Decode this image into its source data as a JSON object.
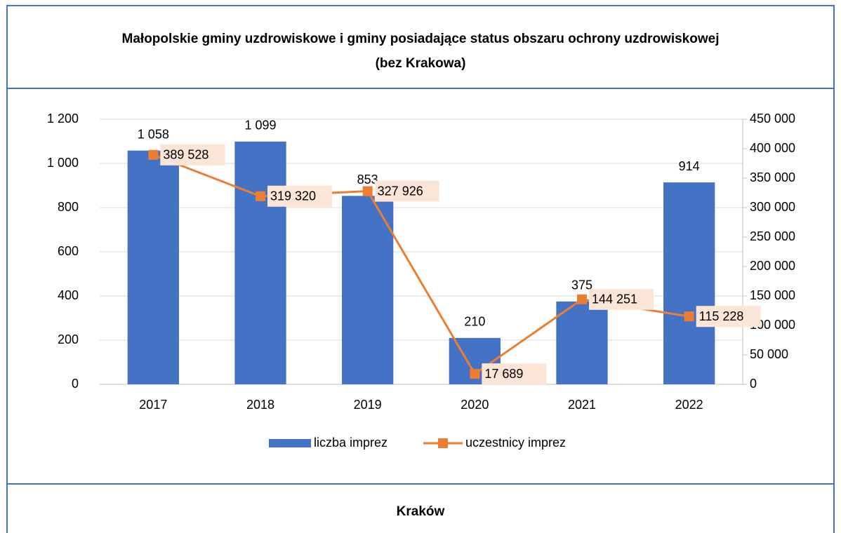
{
  "chart_data": {
    "type": "bar",
    "title": [
      "Małopolskie gminy uzdrowiskowe i gminy posiadające status obszaru ochrony uzdrowiskowej",
      "(bez Krakowa)"
    ],
    "categories": [
      "2017",
      "2018",
      "2019",
      "2020",
      "2021",
      "2022"
    ],
    "series": [
      {
        "name": "liczba imprez",
        "type": "bar",
        "color": "#4472c4",
        "values": [
          1058,
          1099,
          853,
          210,
          375,
          914
        ],
        "value_labels": [
          "1 058",
          "1 099",
          "853",
          "210",
          "375",
          "914"
        ]
      },
      {
        "name": "uczestnicy imprez",
        "type": "line",
        "axis": "y2",
        "color": "#ed7d31",
        "values": [
          389528,
          319320,
          327926,
          17689,
          144251,
          115228
        ],
        "value_labels": [
          "389 528",
          "319 320",
          "327 926",
          "17 689",
          "144 251",
          "115 228"
        ]
      }
    ],
    "ylim": [
      0,
      1200
    ],
    "yticks": [
      0,
      200,
      400,
      600,
      800,
      {
        "value": 1000,
        "label": "1 000"
      },
      {
        "value": 1200,
        "label": "1 200"
      }
    ],
    "y2lim": [
      0,
      450000
    ],
    "y2ticks": [
      0,
      {
        "value": 50000,
        "label": "50 000"
      },
      {
        "value": 100000,
        "label": "100 000"
      },
      {
        "value": 150000,
        "label": "150 000"
      },
      {
        "value": 200000,
        "label": "200 000"
      },
      {
        "value": 250000,
        "label": "250 000"
      },
      {
        "value": 300000,
        "label": "300 000"
      },
      {
        "value": 350000,
        "label": "350 000"
      },
      {
        "value": 400000,
        "label": "400 000"
      },
      {
        "value": 450000,
        "label": "450 000"
      }
    ],
    "grid": true,
    "legend": "bottom"
  },
  "next_section": {
    "title": "Kraków"
  }
}
